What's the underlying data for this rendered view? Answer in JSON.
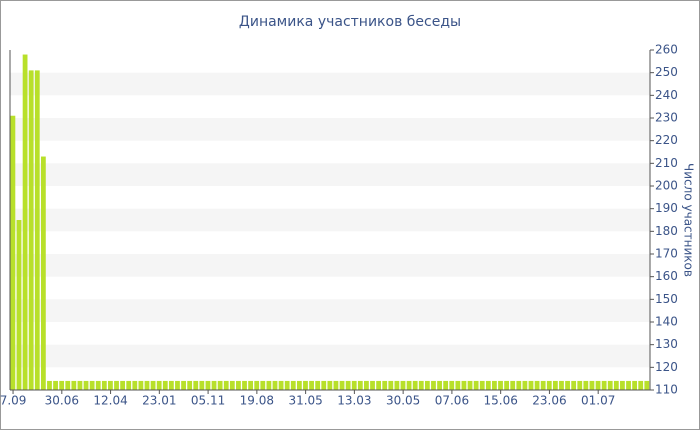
{
  "chart_data": {
    "type": "bar",
    "title": "Динамика участников беседы",
    "y_axis_label": "Число участников",
    "color": "#b8e02a",
    "ylim": [
      110,
      260
    ],
    "yticks": [
      110,
      120,
      130,
      140,
      150,
      160,
      170,
      180,
      190,
      200,
      210,
      220,
      230,
      240,
      250,
      260
    ],
    "grid": true,
    "categories": [
      "7.09",
      null,
      null,
      null,
      null,
      null,
      null,
      null,
      "30.06",
      null,
      null,
      null,
      null,
      null,
      null,
      null,
      "12.04",
      null,
      null,
      null,
      null,
      null,
      null,
      null,
      "23.01",
      null,
      null,
      null,
      null,
      null,
      null,
      null,
      "05.11",
      null,
      null,
      null,
      null,
      null,
      null,
      null,
      "19.08",
      null,
      null,
      null,
      null,
      null,
      null,
      null,
      "31.05",
      null,
      null,
      null,
      null,
      null,
      null,
      null,
      "13.03",
      null,
      null,
      null,
      null,
      null,
      null,
      null,
      "30.05",
      null,
      null,
      null,
      null,
      null,
      null,
      null,
      "07.06",
      null,
      null,
      null,
      null,
      null,
      null,
      null,
      "15.06",
      null,
      null,
      null,
      null,
      null,
      null,
      null,
      "23.06",
      null,
      null,
      null,
      null,
      null,
      null,
      null,
      "01.07",
      null,
      null,
      null,
      null,
      null,
      null,
      null,
      null
    ],
    "values": [
      231,
      185,
      258,
      251,
      251,
      213,
      114,
      114,
      114,
      114,
      114,
      114,
      114,
      114,
      114,
      114,
      114,
      114,
      114,
      114,
      114,
      114,
      114,
      114,
      114,
      114,
      114,
      114,
      114,
      114,
      114,
      114,
      114,
      114,
      114,
      114,
      114,
      114,
      114,
      114,
      114,
      114,
      114,
      114,
      114,
      114,
      114,
      114,
      114,
      114,
      114,
      114,
      114,
      114,
      114,
      114,
      114,
      114,
      114,
      114,
      114,
      114,
      114,
      114,
      114,
      114,
      114,
      114,
      114,
      114,
      114,
      114,
      114,
      114,
      114,
      114,
      114,
      114,
      114,
      114,
      114,
      114,
      114,
      114,
      114,
      114,
      114,
      114,
      114,
      114,
      114,
      114,
      114,
      114,
      114,
      114,
      114,
      114,
      114,
      114,
      114,
      114,
      114,
      114,
      114
    ]
  }
}
